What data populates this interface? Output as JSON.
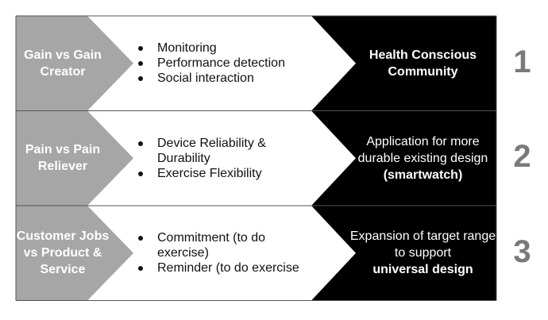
{
  "colors": {
    "gray": "#a6a6a6",
    "black": "#000000",
    "number": "#7a7a7a"
  },
  "rows": [
    {
      "label": "Gain vs Gain Creator",
      "items": [
        "Monitoring",
        "Performance detection",
        "Social interaction"
      ],
      "result": "Health Conscious Community",
      "result_bold": "",
      "number": "1"
    },
    {
      "label": "Pain vs Pain Reliever",
      "items": [
        "Device Reliability & Durability",
        "Exercise Flexibility"
      ],
      "result": "Application for more durable existing design",
      "result_bold": "(smartwatch)",
      "number": "2"
    },
    {
      "label": "Customer Jobs vs Product & Service",
      "items": [
        "Commitment (to do exercise)",
        "Reminder (to do exercise"
      ],
      "result": "Expansion of target range to support",
      "result_bold": "universal design",
      "number": "3"
    }
  ]
}
